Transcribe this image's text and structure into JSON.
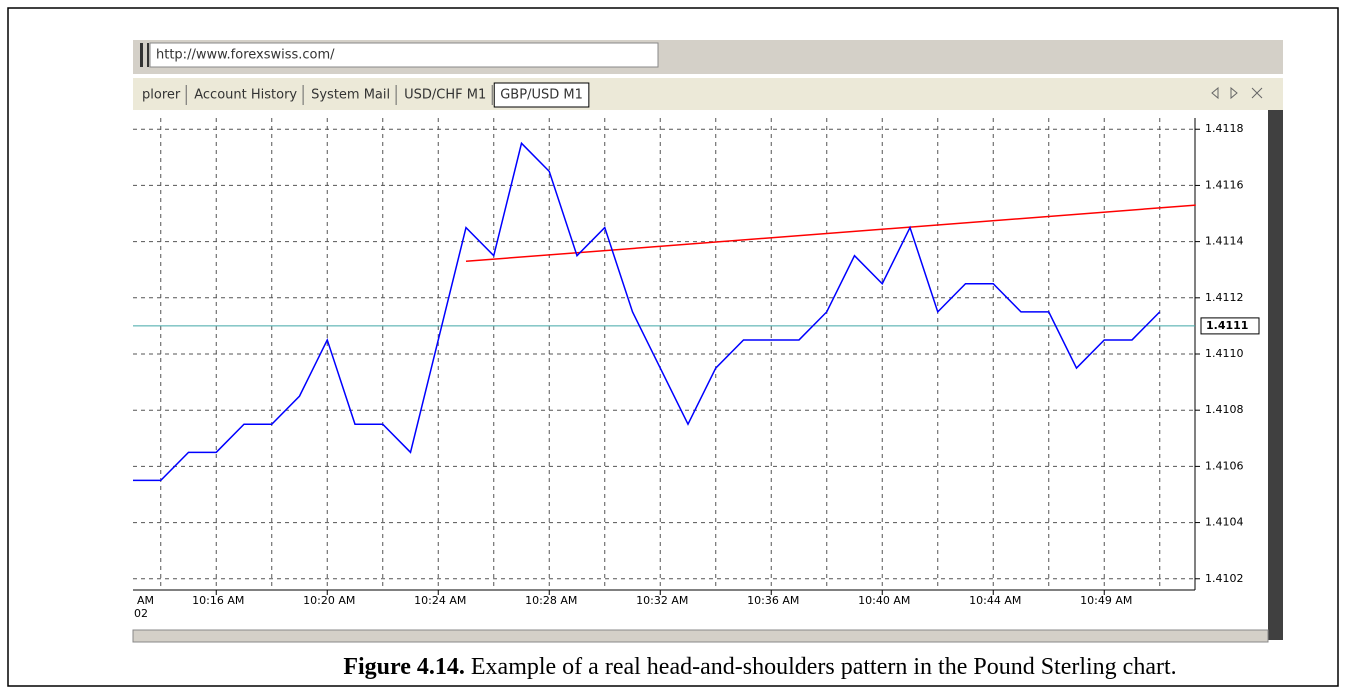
{
  "url": "http://www.forexswiss.com/",
  "tabs": [
    "plorer",
    "Account History",
    "System Mail",
    "USD/CHF M1",
    "GBP/USD M1"
  ],
  "active_tab": 4,
  "caption": {
    "label": "Figure 4.14.",
    "text": "Example of a real head-and-shoulders pattern in the Pound Sterling chart."
  },
  "chart_data": {
    "type": "line",
    "categories": [
      null,
      null,
      null,
      "10:16 AM",
      null,
      null,
      null,
      "10:20 AM",
      null,
      null,
      null,
      "10:24 AM",
      null,
      null,
      null,
      "10:28 AM",
      null,
      null,
      null,
      "10:32 AM",
      null,
      null,
      null,
      "10:36 AM",
      null,
      null,
      null,
      "10:40 AM",
      null,
      null,
      null,
      "10:44 AM",
      null,
      null,
      null,
      "10:49 AM",
      null,
      null
    ],
    "axis_fragments": [
      "AM",
      "02"
    ],
    "series": [
      {
        "name": "GBP/USD M1",
        "color": "#0000ff",
        "values": [
          1.41055,
          1.41055,
          1.41065,
          1.41065,
          1.41075,
          1.41075,
          1.41085,
          1.41105,
          1.41075,
          1.41075,
          1.41065,
          1.41105,
          1.41145,
          1.41135,
          1.41175,
          1.41165,
          1.41135,
          1.41145,
          1.41115,
          1.41095,
          1.41075,
          1.41095,
          1.41105,
          1.41105,
          1.41105,
          1.41115,
          1.41135,
          1.41125,
          1.41145,
          1.41115,
          1.41125,
          1.41125,
          1.41115,
          1.41115,
          1.41095,
          1.41105,
          1.41105,
          1.41115
        ]
      }
    ],
    "trendline": {
      "color": "#ff0000",
      "x": [
        12,
        38.3
      ],
      "values": [
        1.41133,
        1.41153
      ]
    },
    "price_line": {
      "value": 1.4111,
      "color": "#40a8a8"
    },
    "ylim": [
      1.41016,
      1.41184
    ],
    "yticks": [
      1.4102,
      1.4104,
      1.4106,
      1.4108,
      {
        "value": 1.411,
        "label": "1.4110"
      },
      1.4112,
      1.4114,
      1.4116,
      1.4118
    ],
    "grid": true
  }
}
